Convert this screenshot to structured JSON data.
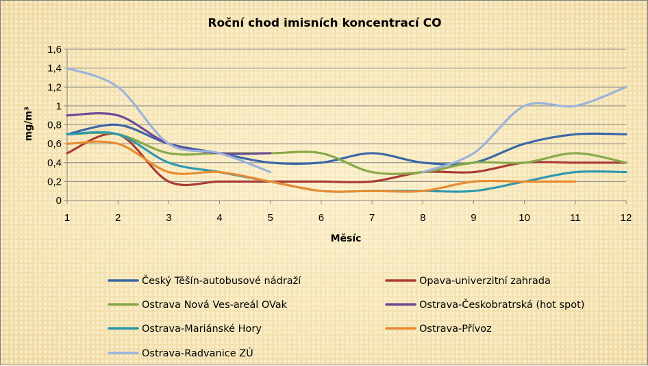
{
  "chart_data": {
    "type": "line",
    "title": "Roční chod imisních koncentrací CO",
    "xlabel": "Měsíc",
    "ylabel": "mg/m³",
    "x": [
      1,
      2,
      3,
      4,
      5,
      6,
      7,
      8,
      9,
      10,
      11,
      12
    ],
    "x_tick_labels": [
      "1",
      "2",
      "3",
      "4",
      "5",
      "6",
      "7",
      "8",
      "9",
      "10",
      "11",
      "12"
    ],
    "ylim": [
      0,
      1.6
    ],
    "y_ticks": [
      0,
      0.2,
      0.4,
      0.6,
      0.8,
      1,
      1.2,
      1.4,
      1.6
    ],
    "y_tick_labels": [
      "0",
      "0,2",
      "0,4",
      "0,6",
      "0,8",
      "1",
      "1,2",
      "1,4",
      "1,6"
    ],
    "grid": "horizontal",
    "legend_position": "bottom",
    "smooth": true,
    "series": [
      {
        "name": "Český Těšín-autobusové nádraží",
        "color": "#3a67a6",
        "values": [
          0.7,
          0.8,
          0.6,
          0.5,
          0.4,
          0.4,
          0.5,
          0.4,
          0.4,
          0.6,
          0.7,
          0.7
        ]
      },
      {
        "name": "Opava-univerzitní zahrada",
        "color": "#a83c37",
        "values": [
          0.5,
          0.7,
          0.2,
          0.2,
          0.2,
          0.2,
          0.2,
          0.3,
          0.3,
          0.4,
          0.4,
          0.4
        ]
      },
      {
        "name": "Ostrava Nová Ves-areál OVak",
        "color": "#86a94a",
        "values": [
          0.7,
          0.7,
          0.5,
          0.5,
          0.5,
          0.5,
          0.3,
          0.3,
          0.4,
          0.4,
          0.5,
          0.4
        ]
      },
      {
        "name": "Ostrava-Českobratrská (hot spot)",
        "color": "#6e4a98",
        "values": [
          0.9,
          0.9,
          0.6,
          0.5,
          0.5,
          null,
          null,
          null,
          null,
          null,
          null,
          null
        ]
      },
      {
        "name": "Ostrava-Mariánské Hory",
        "color": "#2f99ae",
        "values": [
          0.7,
          0.7,
          0.4,
          0.3,
          0.2,
          0.1,
          0.1,
          0.1,
          0.1,
          0.2,
          0.3,
          0.3
        ]
      },
      {
        "name": "Ostrava-Přívoz",
        "color": "#e88b32",
        "values": [
          0.6,
          0.6,
          0.3,
          0.3,
          0.2,
          0.1,
          0.1,
          0.1,
          0.2,
          0.2,
          0.2,
          null
        ]
      },
      {
        "name": "Ostrava-Radvanice ZÚ",
        "color": "#9bb3dc",
        "values": [
          1.4,
          1.2,
          0.6,
          0.5,
          0.3,
          null,
          null,
          0.3,
          0.5,
          1.0,
          1.0,
          1.2
        ]
      }
    ]
  }
}
